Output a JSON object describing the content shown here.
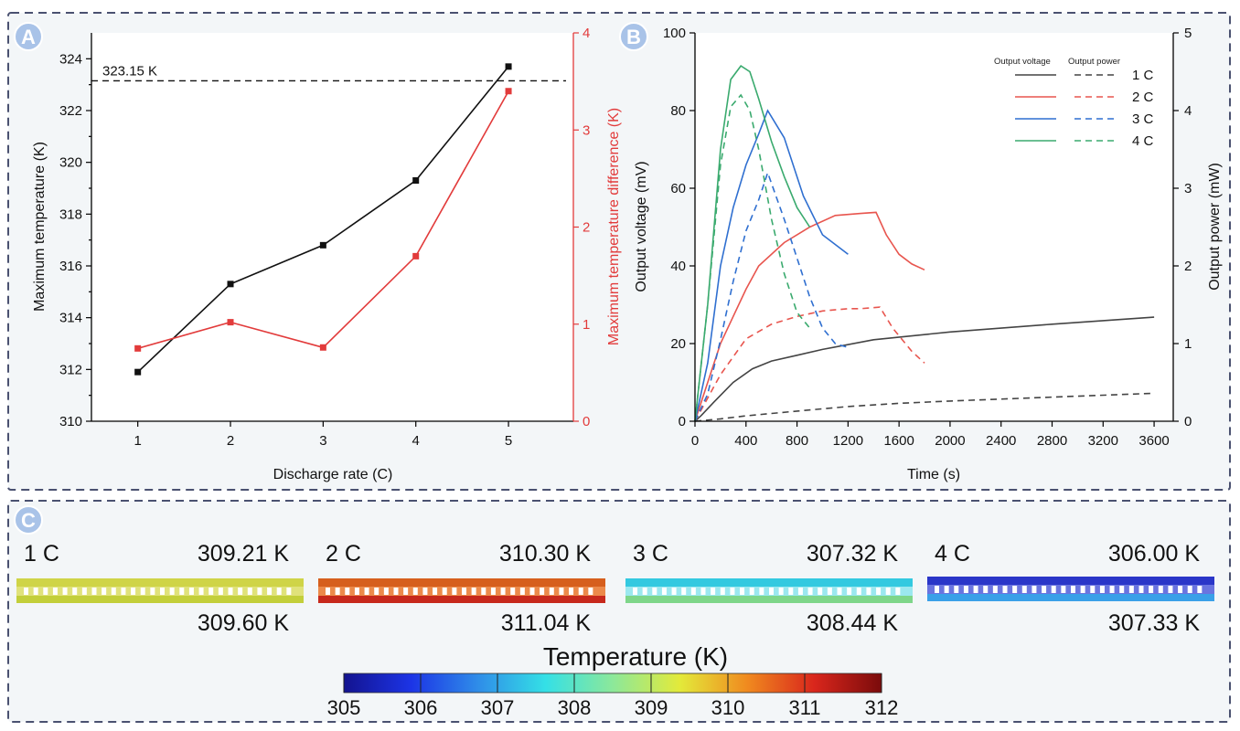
{
  "panels": {
    "a": "A",
    "b": "B",
    "c": "C"
  },
  "chart_data": [
    {
      "type": "line",
      "panel": "A",
      "xlabel": "Discharge rate (C)",
      "ylabel": "Maximum temperature (K)",
      "y2label": "Maximum temperature difference (K)",
      "x": [
        1,
        2,
        3,
        4,
        5
      ],
      "xticks": [
        "1",
        "2",
        "3",
        "4",
        "5"
      ],
      "xlim": [
        0.5,
        5.7
      ],
      "ylim": [
        310,
        325
      ],
      "yticks": [
        "310",
        "312",
        "314",
        "316",
        "318",
        "320",
        "322",
        "324"
      ],
      "y2lim": [
        0,
        4
      ],
      "y2ticks": [
        "0",
        "1",
        "2",
        "3",
        "4"
      ],
      "reference": {
        "value": 323.15,
        "label": "323.15 K"
      },
      "series": [
        {
          "name": "Maximum temperature",
          "axis": "left",
          "color": "#111111",
          "values": [
            311.9,
            315.3,
            316.8,
            319.3,
            323.7
          ]
        },
        {
          "name": "Maximum temperature difference",
          "axis": "right",
          "color": "#e23b3b",
          "values": [
            0.75,
            1.02,
            0.76,
            1.7,
            3.4
          ]
        }
      ]
    },
    {
      "type": "line",
      "panel": "B",
      "xlabel": "Time (s)",
      "ylabel": "Output voltage (mV)",
      "y2label": "Output power (mW)",
      "xlim": [
        0,
        3750
      ],
      "xticks": [
        "0",
        "400",
        "800",
        "1200",
        "1600",
        "2000",
        "2400",
        "2800",
        "3200",
        "3600"
      ],
      "ylim": [
        0,
        100
      ],
      "yticks": [
        "0",
        "20",
        "40",
        "60",
        "80",
        "100"
      ],
      "y2lim": [
        0,
        5
      ],
      "y2ticks": [
        "0",
        "1",
        "2",
        "3",
        "4",
        "5"
      ],
      "legend": {
        "voltage_header": "Output voltage",
        "power_header": "Output power",
        "labels": [
          "1 C",
          "2 C",
          "3 C",
          "4 C"
        ]
      },
      "series": [
        {
          "name": "1 C voltage",
          "axis": "left",
          "style": "solid",
          "color": "#444444",
          "x": [
            0,
            50,
            150,
            300,
            450,
            600,
            800,
            1000,
            1400,
            2000,
            2800,
            3600
          ],
          "values": [
            0,
            1.5,
            5,
            10,
            13.5,
            15.5,
            17,
            18.5,
            21,
            23,
            25,
            26.8
          ]
        },
        {
          "name": "1 C power",
          "axis": "right",
          "style": "dashed",
          "color": "#444444",
          "x": [
            0,
            200,
            400,
            800,
            1200,
            1600,
            2000,
            2800,
            3600
          ],
          "values": [
            0,
            0.03,
            0.07,
            0.13,
            0.19,
            0.23,
            0.26,
            0.31,
            0.36
          ]
        },
        {
          "name": "2 C voltage",
          "axis": "left",
          "style": "solid",
          "color": "#e8554e",
          "x": [
            0,
            100,
            200,
            300,
            400,
            500,
            700,
            900,
            1100,
            1300,
            1420,
            1500,
            1600,
            1700,
            1800
          ],
          "values": [
            0,
            10,
            20,
            27,
            34,
            40,
            46,
            50,
            53,
            53.5,
            53.8,
            48,
            43,
            40.5,
            39
          ]
        },
        {
          "name": "2 C power",
          "axis": "right",
          "style": "dashed",
          "color": "#e8554e",
          "x": [
            0,
            200,
            400,
            600,
            800,
            1000,
            1200,
            1300,
            1450,
            1550,
            1700,
            1800
          ],
          "values": [
            0,
            0.6,
            1.06,
            1.25,
            1.35,
            1.42,
            1.45,
            1.45,
            1.47,
            1.2,
            0.9,
            0.75
          ]
        },
        {
          "name": "3 C voltage",
          "axis": "left",
          "style": "solid",
          "color": "#2f6fd0",
          "x": [
            0,
            100,
            200,
            300,
            400,
            500,
            570,
            700,
            850,
            1000,
            1200
          ],
          "values": [
            0,
            15,
            40,
            55,
            66,
            74,
            80,
            73,
            58,
            48,
            43
          ]
        },
        {
          "name": "3 C power",
          "axis": "right",
          "style": "dashed",
          "color": "#2f6fd0",
          "x": [
            0,
            100,
            200,
            300,
            400,
            500,
            570,
            700,
            800,
            900,
            1000,
            1100,
            1200
          ],
          "values": [
            0,
            0.35,
            1.05,
            1.8,
            2.45,
            2.85,
            3.2,
            2.6,
            2.1,
            1.6,
            1.2,
            1.0,
            0.95
          ]
        },
        {
          "name": "4 C voltage",
          "axis": "left",
          "style": "solid",
          "color": "#3aaa6e",
          "x": [
            0,
            100,
            200,
            280,
            360,
            430,
            500,
            600,
            700,
            800,
            900
          ],
          "values": [
            0,
            30,
            70,
            88,
            91.5,
            90,
            83,
            72,
            63,
            55,
            50
          ]
        },
        {
          "name": "4 C power",
          "axis": "right",
          "style": "dashed",
          "color": "#3aaa6e",
          "x": [
            0,
            100,
            200,
            280,
            360,
            430,
            500,
            600,
            700,
            800,
            900
          ],
          "values": [
            0,
            1.5,
            3.3,
            4.05,
            4.2,
            4.0,
            3.5,
            2.6,
            1.9,
            1.4,
            1.2
          ]
        }
      ]
    }
  ],
  "panel_c": {
    "cells": [
      {
        "rate": "1 C",
        "top_temp": "309.21 K",
        "bottom_temp": "309.60 K",
        "top_color": "#cfd447",
        "bottom_color": "#c3cf3a",
        "slot_color": "#e0e27a"
      },
      {
        "rate": "2 C",
        "top_temp": "310.30 K",
        "bottom_temp": "311.04 K",
        "top_color": "#d65f1d",
        "bottom_color": "#c7291c",
        "slot_color": "#ec8a4a"
      },
      {
        "rate": "3 C",
        "top_temp": "307.32 K",
        "bottom_temp": "308.44 K",
        "top_color": "#33c9e0",
        "bottom_color": "#7ed68a",
        "slot_color": "#9be8ef"
      },
      {
        "rate": "4 C",
        "top_temp": "306.00 K",
        "bottom_temp": "307.33 K",
        "top_color": "#2a36c8",
        "bottom_color": "#3aa0e8",
        "slot_color": "#6a74e0"
      }
    ],
    "colorbar": {
      "title": "Temperature (K)",
      "ticks": [
        "305",
        "306",
        "307",
        "308",
        "309",
        "310",
        "311",
        "312"
      ],
      "colors": [
        "#13138f",
        "#1c34e6",
        "#2f8de8",
        "#34e0e6",
        "#8ce89a",
        "#e3ea3a",
        "#f08a1f",
        "#d9261c",
        "#7a0b0b"
      ]
    }
  }
}
